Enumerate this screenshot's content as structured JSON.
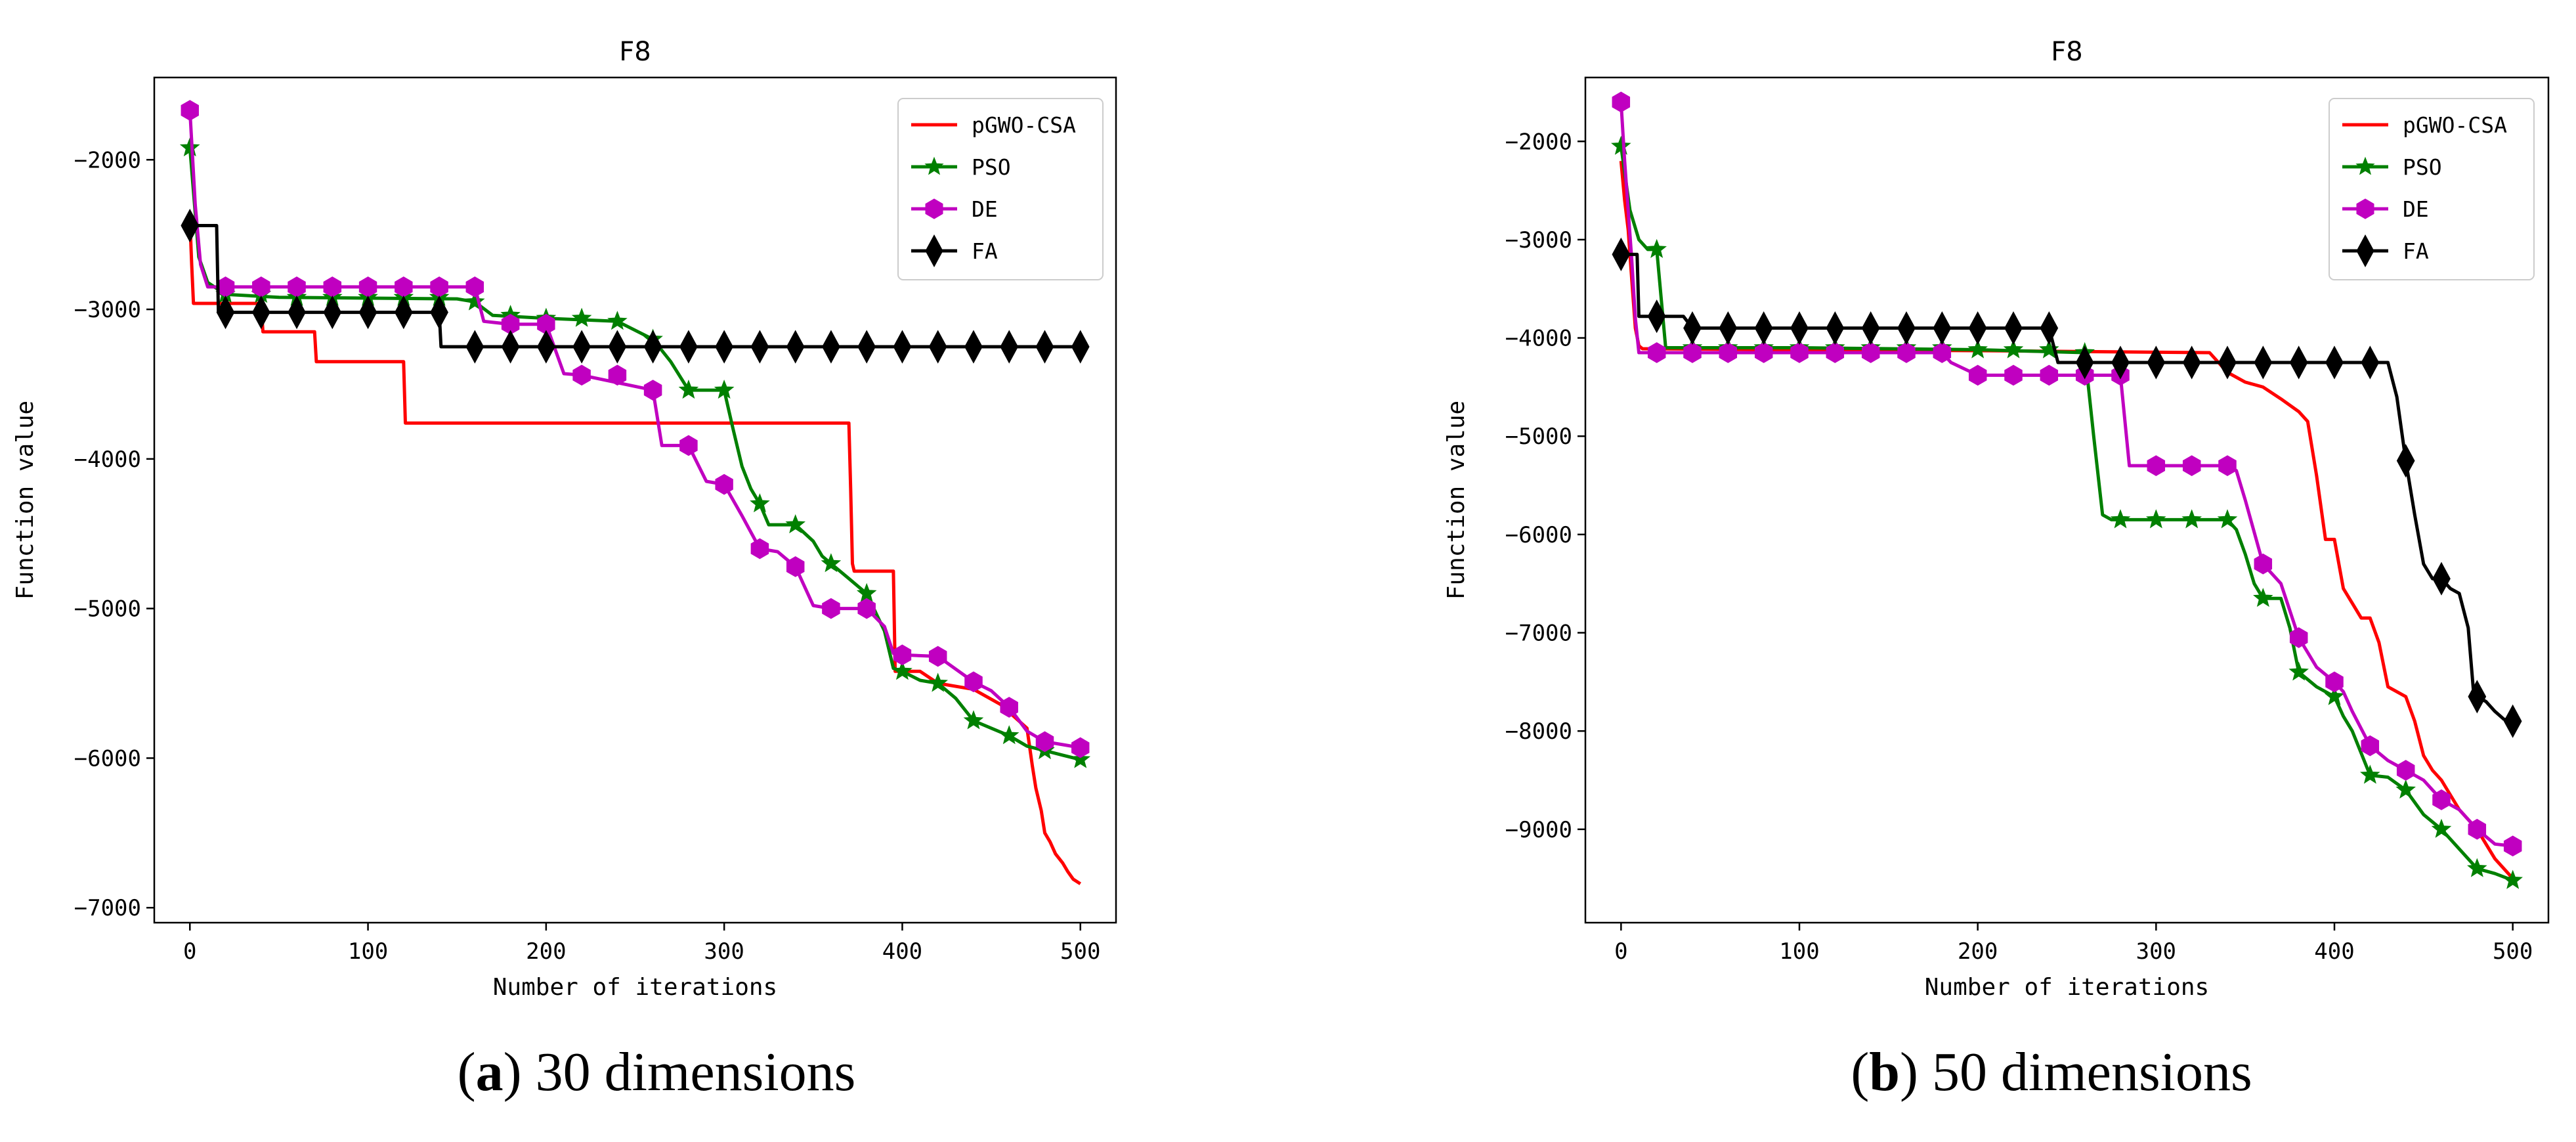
{
  "captions": [
    {
      "open": "(",
      "letter": "a",
      "close": ")",
      "text": " 30 dimensions"
    },
    {
      "open": "(",
      "letter": "b",
      "close": ")",
      "text": " 50 dimensions"
    }
  ],
  "colors": {
    "pGWO-CSA": "#ff0000",
    "PSO": "#008000",
    "DE": "#c000c0",
    "FA": "#000000"
  },
  "chart_data": [
    {
      "type": "line",
      "title": "F8",
      "xlabel": "Number of iterations",
      "ylabel": "Function value",
      "xlim": [
        -20,
        520
      ],
      "ylim": [
        -7100,
        -1450
      ],
      "xticks": [
        0,
        100,
        200,
        300,
        400,
        500
      ],
      "yticks": [
        -2000,
        -3000,
        -4000,
        -5000,
        -6000,
        -7000
      ],
      "legend": "top-right",
      "series": [
        {
          "name": "pGWO-CSA",
          "marker": "none",
          "x": [
            0,
            1,
            2,
            3,
            40,
            41,
            70,
            71,
            120,
            121,
            370,
            371,
            372,
            373,
            390,
            395,
            396,
            410,
            420,
            440,
            455,
            470,
            473,
            475,
            478,
            480,
            483,
            486,
            490,
            493,
            496,
            500
          ],
          "y": [
            -2400,
            -2700,
            -2960,
            -2960,
            -2960,
            -3150,
            -3150,
            -3350,
            -3350,
            -3760,
            -3760,
            -4200,
            -4700,
            -4750,
            -4750,
            -4750,
            -5420,
            -5420,
            -5500,
            -5540,
            -5640,
            -5800,
            -6050,
            -6200,
            -6350,
            -6500,
            -6560,
            -6640,
            -6700,
            -6760,
            -6810,
            -6840
          ]
        },
        {
          "name": "PSO",
          "marker": "star",
          "x": [
            0,
            5,
            10,
            20,
            50,
            150,
            160,
            170,
            200,
            240,
            260,
            270,
            280,
            300,
            305,
            310,
            315,
            320,
            325,
            340,
            350,
            355,
            360,
            370,
            380,
            390,
            395,
            400,
            410,
            420,
            430,
            440,
            450,
            460,
            470,
            480,
            490,
            500
          ],
          "y": [
            -1920,
            -2650,
            -2820,
            -2900,
            -2920,
            -2930,
            -2950,
            -3040,
            -3060,
            -3080,
            -3200,
            -3350,
            -3540,
            -3540,
            -3800,
            -4050,
            -4200,
            -4300,
            -4440,
            -4440,
            -4550,
            -4650,
            -4700,
            -4800,
            -4900,
            -5150,
            -5400,
            -5420,
            -5480,
            -5500,
            -5600,
            -5750,
            -5800,
            -5850,
            -5920,
            -5950,
            -5980,
            -6010
          ]
        },
        {
          "name": "DE",
          "marker": "hexagon",
          "x": [
            0,
            3,
            6,
            10,
            20,
            100,
            160,
            165,
            180,
            200,
            210,
            220,
            260,
            265,
            280,
            290,
            300,
            310,
            320,
            330,
            340,
            350,
            360,
            380,
            390,
            395,
            400,
            420,
            440,
            450,
            460,
            470,
            480,
            490,
            500
          ],
          "y": [
            -1670,
            -2300,
            -2700,
            -2850,
            -2850,
            -2850,
            -2850,
            -3080,
            -3100,
            -3100,
            -3430,
            -3440,
            -3540,
            -3910,
            -3910,
            -4150,
            -4170,
            -4380,
            -4600,
            -4620,
            -4720,
            -4980,
            -5000,
            -5000,
            -5120,
            -5300,
            -5310,
            -5320,
            -5490,
            -5550,
            -5660,
            -5820,
            -5890,
            -5910,
            -5930
          ]
        },
        {
          "name": "FA",
          "marker": "diamond",
          "x": [
            0,
            1,
            15,
            16,
            80,
            140,
            141,
            160,
            200,
            300,
            400,
            500
          ],
          "y": [
            -2440,
            -2440,
            -2440,
            -3020,
            -3020,
            -3020,
            -3250,
            -3250,
            -3250,
            -3250,
            -3250,
            -3250
          ]
        }
      ]
    },
    {
      "type": "line",
      "title": "F8",
      "xlabel": "Number of iterations",
      "ylabel": "Function value",
      "xlim": [
        -20,
        520
      ],
      "ylim": [
        -9950,
        -1350
      ],
      "xticks": [
        0,
        100,
        200,
        300,
        400,
        500
      ],
      "yticks": [
        -2000,
        -3000,
        -4000,
        -5000,
        -6000,
        -7000,
        -8000,
        -9000
      ],
      "legend": "top-right",
      "series": [
        {
          "name": "pGWO-CSA",
          "marker": "none",
          "x": [
            0,
            2,
            4,
            6,
            8,
            10,
            12,
            200,
            330,
            340,
            350,
            360,
            370,
            380,
            385,
            390,
            395,
            400,
            405,
            410,
            415,
            420,
            425,
            430,
            435,
            440,
            445,
            450,
            455,
            460,
            465,
            470,
            475,
            480,
            485,
            490,
            495,
            500
          ],
          "y": [
            -2200,
            -2600,
            -2900,
            -3400,
            -3900,
            -4080,
            -4110,
            -4130,
            -4150,
            -4350,
            -4450,
            -4500,
            -4620,
            -4750,
            -4850,
            -5400,
            -6050,
            -6050,
            -6550,
            -6700,
            -6850,
            -6850,
            -7100,
            -7550,
            -7600,
            -7650,
            -7900,
            -8250,
            -8400,
            -8500,
            -8650,
            -8800,
            -8900,
            -9000,
            -9150,
            -9300,
            -9400,
            -9500
          ]
        },
        {
          "name": "PSO",
          "marker": "star",
          "x": [
            0,
            5,
            10,
            15,
            20,
            25,
            30,
            40,
            100,
            200,
            260,
            265,
            270,
            275,
            280,
            300,
            340,
            345,
            350,
            355,
            360,
            370,
            375,
            380,
            390,
            400,
            405,
            410,
            420,
            430,
            440,
            450,
            460,
            470,
            480,
            490,
            500
          ],
          "y": [
            -2050,
            -2700,
            -3000,
            -3100,
            -3100,
            -4100,
            -4100,
            -4100,
            -4100,
            -4120,
            -4150,
            -5000,
            -5800,
            -5850,
            -5850,
            -5850,
            -5850,
            -5950,
            -6200,
            -6500,
            -6650,
            -6650,
            -6950,
            -7400,
            -7550,
            -7650,
            -7850,
            -8000,
            -8450,
            -8470,
            -8600,
            -8850,
            -9000,
            -9200,
            -9400,
            -9450,
            -9520
          ]
        },
        {
          "name": "DE",
          "marker": "hexagon",
          "x": [
            0,
            2,
            4,
            6,
            8,
            10,
            100,
            180,
            185,
            200,
            250,
            270,
            280,
            285,
            300,
            340,
            345,
            350,
            360,
            370,
            380,
            390,
            400,
            405,
            410,
            420,
            430,
            440,
            450,
            460,
            470,
            480,
            490,
            500
          ],
          "y": [
            -1600,
            -2200,
            -2700,
            -3200,
            -3800,
            -4150,
            -4150,
            -4150,
            -4250,
            -4380,
            -4380,
            -4380,
            -4380,
            -5300,
            -5300,
            -5300,
            -5350,
            -5650,
            -6300,
            -6500,
            -7050,
            -7350,
            -7500,
            -7600,
            -7800,
            -8150,
            -8300,
            -8400,
            -8500,
            -8700,
            -8800,
            -9000,
            -9150,
            -9170
          ]
        },
        {
          "name": "FA",
          "marker": "diamond",
          "x": [
            0,
            5,
            9,
            10,
            20,
            35,
            40,
            100,
            240,
            245,
            300,
            430,
            435,
            440,
            445,
            450,
            455,
            460,
            465,
            470,
            475,
            478,
            480,
            485,
            490,
            495,
            500
          ],
          "y": [
            -3150,
            -3150,
            -3150,
            -3780,
            -3780,
            -3780,
            -3900,
            -3900,
            -3900,
            -4250,
            -4250,
            -4250,
            -4600,
            -5250,
            -5800,
            -6300,
            -6450,
            -6450,
            -6550,
            -6600,
            -6950,
            -7600,
            -7650,
            -7700,
            -7800,
            -7880,
            -7900
          ]
        }
      ]
    }
  ]
}
